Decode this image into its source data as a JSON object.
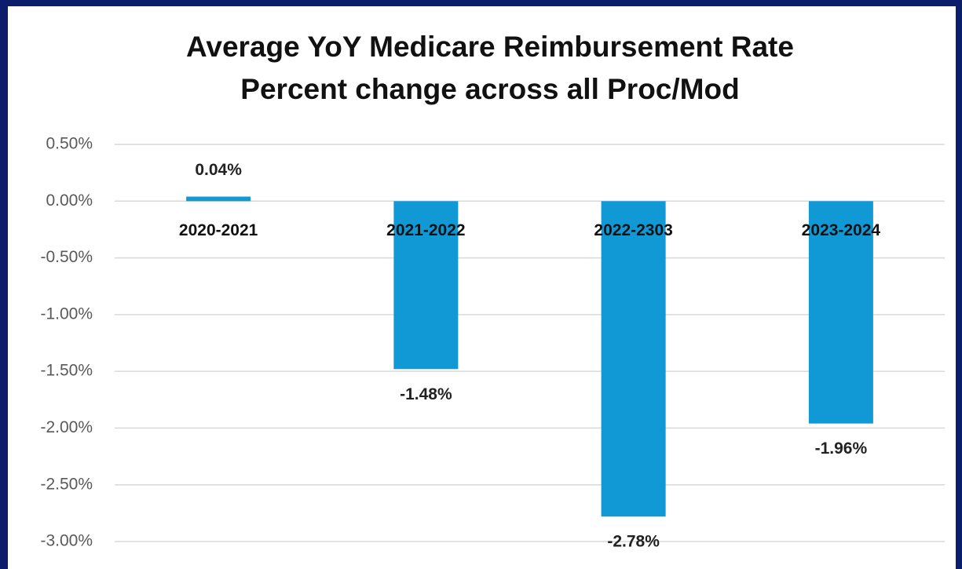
{
  "chart_data": {
    "type": "bar",
    "title": [
      "Average YoY Medicare Reimbursement Rate",
      "Percent change across all Proc/Mod"
    ],
    "categories": [
      "2020-2021",
      "2021-2022",
      "2022-2303",
      "2023-2024"
    ],
    "values": [
      0.04,
      -1.48,
      -2.78,
      -1.96
    ],
    "value_labels": [
      "0.04%",
      "-1.48%",
      "-2.78%",
      "-1.96%"
    ],
    "color": "#1199d6",
    "ylim": [
      -3,
      0.5
    ],
    "yticks": [
      {
        "value": 0.5,
        "label": "0.50%"
      },
      {
        "value": 0,
        "label": "0.00%"
      },
      {
        "value": -0.5,
        "label": "-0.50%"
      },
      {
        "value": -1,
        "label": "-1.00%"
      },
      {
        "value": -1.5,
        "label": "-1.50%"
      },
      {
        "value": -2,
        "label": "-2.00%"
      },
      {
        "value": -2.5,
        "label": "-2.50%"
      },
      {
        "value": -3,
        "label": "-3.00%"
      }
    ],
    "grid": true
  }
}
